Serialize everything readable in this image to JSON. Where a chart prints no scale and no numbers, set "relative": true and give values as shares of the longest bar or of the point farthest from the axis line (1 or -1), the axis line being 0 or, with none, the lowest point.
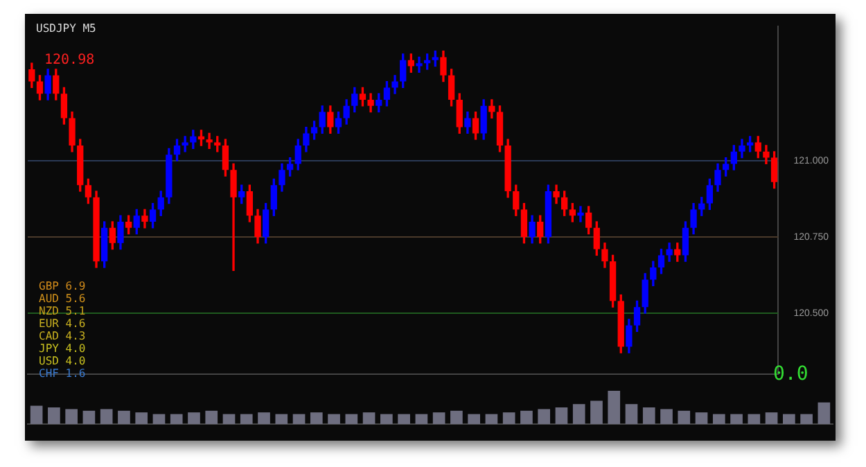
{
  "chart_data": [
    {
      "type": "candlestick",
      "title": "USDJPY  M5",
      "annotations": [
        "120.98",
        "GBP 6.9",
        "AUD 5.6",
        "NZD 5.1",
        "EUR 4.6",
        "CAD 4.3",
        "JPY 4.0",
        "USD 4.0",
        "CHF 1.6",
        "0.0"
      ],
      "categories": [
        null,
        null,
        null,
        null,
        null,
        null,
        null,
        null,
        null,
        null,
        null,
        null,
        null,
        null,
        null,
        null,
        null,
        null,
        null,
        null,
        null,
        null,
        null,
        null,
        null,
        null,
        null,
        null,
        null,
        null,
        null,
        null,
        null,
        null,
        null,
        null,
        null,
        null,
        null,
        null,
        null,
        null,
        null,
        null,
        null,
        null,
        null,
        null,
        null,
        null,
        null,
        null,
        null,
        null,
        null,
        null,
        null,
        null,
        null,
        null,
        null,
        null,
        null,
        null,
        null,
        null,
        null,
        null,
        null,
        null,
        null,
        null,
        null,
        null,
        null,
        null,
        null,
        null,
        null,
        null,
        null,
        null,
        null,
        null,
        null,
        null,
        null,
        null,
        null,
        null,
        null,
        null,
        null
      ],
      "ohlc": [
        [
          121.3,
          121.32,
          121.24,
          121.26
        ],
        [
          121.26,
          121.28,
          121.2,
          121.22
        ],
        [
          121.22,
          121.3,
          121.2,
          121.28
        ],
        [
          121.28,
          121.3,
          121.2,
          121.22
        ],
        [
          121.22,
          121.24,
          121.12,
          121.14
        ],
        [
          121.14,
          121.16,
          121.03,
          121.05
        ],
        [
          121.05,
          121.07,
          120.9,
          120.92
        ],
        [
          120.92,
          120.94,
          120.86,
          120.88
        ],
        [
          120.88,
          120.9,
          120.65,
          120.67
        ],
        [
          120.67,
          120.8,
          120.65,
          120.78
        ],
        [
          120.78,
          120.8,
          120.71,
          120.73
        ],
        [
          120.73,
          120.82,
          120.71,
          120.8
        ],
        [
          120.8,
          120.82,
          120.76,
          120.78
        ],
        [
          120.78,
          120.84,
          120.76,
          120.82
        ],
        [
          120.82,
          120.84,
          120.78,
          120.8
        ],
        [
          120.8,
          120.86,
          120.78,
          120.84
        ],
        [
          120.84,
          120.9,
          120.82,
          120.88
        ],
        [
          120.88,
          121.04,
          120.86,
          121.02
        ],
        [
          121.02,
          121.07,
          121.0,
          121.05
        ],
        [
          121.05,
          121.08,
          121.03,
          121.06
        ],
        [
          121.06,
          121.1,
          121.04,
          121.08
        ],
        [
          121.08,
          121.1,
          121.05,
          121.07
        ],
        [
          121.07,
          121.09,
          121.04,
          121.06
        ],
        [
          121.06,
          121.08,
          121.03,
          121.05
        ],
        [
          121.05,
          121.07,
          120.95,
          120.97
        ],
        [
          120.97,
          120.99,
          120.64,
          120.88
        ],
        [
          120.88,
          120.92,
          120.86,
          120.9
        ],
        [
          120.9,
          120.92,
          120.8,
          120.82
        ],
        [
          120.82,
          120.84,
          120.73,
          120.75
        ],
        [
          120.75,
          120.86,
          120.73,
          120.84
        ],
        [
          120.84,
          120.94,
          120.82,
          120.92
        ],
        [
          120.92,
          120.99,
          120.9,
          120.97
        ],
        [
          120.97,
          121.01,
          120.95,
          120.99
        ],
        [
          120.99,
          121.07,
          120.97,
          121.05
        ],
        [
          121.05,
          121.11,
          121.03,
          121.09
        ],
        [
          121.09,
          121.13,
          121.07,
          121.11
        ],
        [
          121.11,
          121.18,
          121.09,
          121.16
        ],
        [
          121.16,
          121.18,
          121.09,
          121.11
        ],
        [
          121.11,
          121.16,
          121.09,
          121.14
        ],
        [
          121.14,
          121.2,
          121.12,
          121.18
        ],
        [
          121.18,
          121.24,
          121.16,
          121.22
        ],
        [
          121.22,
          121.24,
          121.18,
          121.2
        ],
        [
          121.2,
          121.22,
          121.16,
          121.18
        ],
        [
          121.18,
          121.22,
          121.16,
          121.2
        ],
        [
          121.2,
          121.26,
          121.18,
          121.24
        ],
        [
          121.24,
          121.28,
          121.22,
          121.26
        ],
        [
          121.26,
          121.35,
          121.24,
          121.33
        ],
        [
          121.33,
          121.35,
          121.29,
          121.31
        ],
        [
          121.31,
          121.34,
          121.29,
          121.32
        ],
        [
          121.32,
          121.35,
          121.3,
          121.33
        ],
        [
          121.33,
          121.36,
          121.31,
          121.34
        ],
        [
          121.34,
          121.36,
          121.26,
          121.28
        ],
        [
          121.28,
          121.3,
          121.18,
          121.2
        ],
        [
          121.2,
          121.22,
          121.09,
          121.11
        ],
        [
          121.11,
          121.16,
          121.09,
          121.14
        ],
        [
          121.14,
          121.16,
          121.07,
          121.09
        ],
        [
          121.09,
          121.2,
          121.07,
          121.18
        ],
        [
          121.18,
          121.2,
          121.14,
          121.16
        ],
        [
          121.16,
          121.18,
          121.03,
          121.05
        ],
        [
          121.05,
          121.07,
          120.88,
          120.9
        ],
        [
          120.9,
          120.92,
          120.82,
          120.84
        ],
        [
          120.84,
          120.86,
          120.73,
          120.75
        ],
        [
          120.75,
          120.82,
          120.73,
          120.8
        ],
        [
          120.8,
          120.82,
          120.73,
          120.75
        ],
        [
          120.75,
          120.92,
          120.73,
          120.9
        ],
        [
          120.9,
          120.92,
          120.86,
          120.88
        ],
        [
          120.88,
          120.9,
          120.82,
          120.84
        ],
        [
          120.84,
          120.86,
          120.8,
          120.82
        ],
        [
          120.82,
          120.85,
          120.8,
          120.83
        ],
        [
          120.83,
          120.85,
          120.76,
          120.78
        ],
        [
          120.78,
          120.8,
          120.69,
          120.71
        ],
        [
          120.71,
          120.73,
          120.65,
          120.67
        ],
        [
          120.67,
          120.69,
          120.52,
          120.54
        ],
        [
          120.54,
          120.56,
          120.37,
          120.39
        ],
        [
          120.39,
          120.48,
          120.37,
          120.46
        ],
        [
          120.46,
          120.54,
          120.44,
          120.52
        ],
        [
          120.52,
          120.63,
          120.5,
          120.61
        ],
        [
          120.61,
          120.67,
          120.59,
          120.65
        ],
        [
          120.65,
          120.71,
          120.63,
          120.69
        ],
        [
          120.69,
          120.73,
          120.67,
          120.71
        ],
        [
          120.71,
          120.73,
          120.67,
          120.69
        ],
        [
          120.69,
          120.8,
          120.67,
          120.78
        ],
        [
          120.78,
          120.86,
          120.76,
          120.84
        ],
        [
          120.84,
          120.88,
          120.82,
          120.86
        ],
        [
          120.86,
          120.94,
          120.84,
          120.92
        ],
        [
          120.92,
          120.99,
          120.9,
          120.97
        ],
        [
          120.97,
          121.01,
          120.95,
          120.99
        ],
        [
          120.99,
          121.05,
          120.97,
          121.03
        ],
        [
          121.03,
          121.07,
          121.01,
          121.05
        ],
        [
          121.05,
          121.08,
          121.03,
          121.06
        ],
        [
          121.06,
          121.08,
          121.01,
          121.03
        ],
        [
          121.03,
          121.05,
          120.99,
          121.01
        ],
        [
          121.01,
          121.03,
          120.91,
          120.93
        ]
      ],
      "colors": [
        "#ff0000",
        "#ff0000",
        "#0000ff",
        "#ff0000",
        "#ff0000",
        "#ff0000",
        "#ff0000",
        "#ff0000",
        "#ff0000",
        "#0000ff",
        "#ff0000",
        "#0000ff",
        "#ff0000",
        "#0000ff",
        "#ff0000",
        "#0000ff",
        "#0000ff",
        "#0000ff",
        "#0000ff",
        "#0000ff",
        "#0000ff",
        "#ff0000",
        "#ff0000",
        "#ff0000",
        "#ff0000",
        "#ff0000",
        "#0000ff",
        "#ff0000",
        "#ff0000",
        "#0000ff",
        "#0000ff",
        "#0000ff",
        "#0000ff",
        "#0000ff",
        "#0000ff",
        "#0000ff",
        "#0000ff",
        "#ff0000",
        "#0000ff",
        "#0000ff",
        "#0000ff",
        "#ff0000",
        "#ff0000",
        "#0000ff",
        "#0000ff",
        "#0000ff",
        "#0000ff",
        "#ff0000",
        "#0000ff",
        "#0000ff",
        "#0000ff",
        "#ff0000",
        "#ff0000",
        "#ff0000",
        "#0000ff",
        "#ff0000",
        "#0000ff",
        "#ff0000",
        "#ff0000",
        "#ff0000",
        "#ff0000",
        "#ff0000",
        "#0000ff",
        "#ff0000",
        "#0000ff",
        "#ff0000",
        "#ff0000",
        "#ff0000",
        "#0000ff",
        "#ff0000",
        "#ff0000",
        "#ff0000",
        "#ff0000",
        "#ff0000",
        "#0000ff",
        "#0000ff",
        "#0000ff",
        "#0000ff",
        "#0000ff",
        "#0000ff",
        "#ff0000",
        "#0000ff",
        "#0000ff",
        "#0000ff",
        "#0000ff",
        "#0000ff",
        "#0000ff",
        "#0000ff",
        "#0000ff",
        "#0000ff",
        "#ff0000",
        "#ff0000",
        "#ff0000"
      ],
      "ylim": [
        120.3,
        121.44
      ],
      "yticks": [
        {
          "value": 120.5,
          "label": "120.500"
        },
        {
          "value": 120.75,
          "label": "120.750"
        },
        {
          "value": 121,
          "label": "121.000"
        }
      ],
      "ref_lines": [
        {
          "axis": "y",
          "value": 120.5,
          "color": "#1f5a1f"
        },
        {
          "axis": "y",
          "value": 120.75,
          "color": "#4a3a2a"
        },
        {
          "axis": "y",
          "value": 121,
          "color": "#2a3a55"
        }
      ],
      "grid": false
    },
    {
      "type": "bar",
      "relative": true,
      "categories": [
        null,
        null,
        null,
        null,
        null,
        null,
        null,
        null,
        null,
        null,
        null,
        null,
        null,
        null,
        null,
        null,
        null,
        null,
        null,
        null,
        null,
        null,
        null,
        null,
        null,
        null,
        null,
        null,
        null,
        null,
        null,
        null,
        null,
        null,
        null,
        null,
        null,
        null,
        null,
        null,
        null,
        null,
        null,
        null,
        null,
        null
      ],
      "values": [
        0.55,
        0.5,
        0.45,
        0.4,
        0.45,
        0.4,
        0.35,
        0.3,
        0.3,
        0.35,
        0.4,
        0.3,
        0.3,
        0.35,
        0.3,
        0.3,
        0.35,
        0.3,
        0.3,
        0.35,
        0.3,
        0.3,
        0.3,
        0.35,
        0.4,
        0.3,
        0.3,
        0.35,
        0.4,
        0.45,
        0.5,
        0.6,
        0.7,
        1,
        0.6,
        0.5,
        0.45,
        0.4,
        0.35,
        0.3,
        0.3,
        0.3,
        0.35,
        0.3,
        0.3,
        0.65
      ],
      "color": "#6e6e80",
      "grid": false
    }
  ]
}
